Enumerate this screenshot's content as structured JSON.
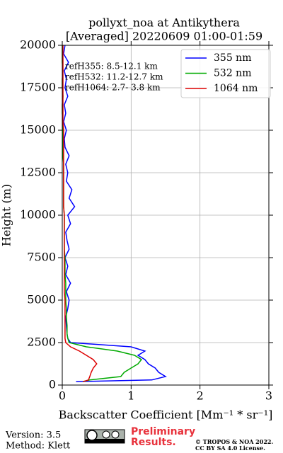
{
  "chart_data": {
    "type": "line",
    "orientation": "vertical-profile",
    "title": "pollyxt_noa at Antikythera",
    "subtitle": "[Averaged] 20220609 01:00-01:59",
    "x_label": "Backscatter Coefficient [Mm⁻¹ * sr⁻¹]",
    "y_label": "Height (m)",
    "y": [
      200,
      300,
      500,
      750,
      1000,
      1250,
      1500,
      1750,
      2000,
      2250,
      2500,
      2750,
      3000,
      3500,
      4000,
      4500,
      5000,
      5500,
      6000,
      6500,
      7000,
      7500,
      8000,
      8500,
      9000,
      9500,
      10000,
      10500,
      11000,
      11500,
      12000,
      12500,
      13000,
      13500,
      14000,
      14500,
      15000,
      15500,
      16000,
      16500,
      17000,
      17500,
      18000,
      18500,
      19000,
      19500,
      20000
    ],
    "series": [
      {
        "name": "355 nm",
        "color": "#0000ff",
        "values": [
          0.2,
          1.3,
          1.5,
          1.4,
          1.35,
          1.25,
          1.2,
          1.1,
          1.2,
          1.0,
          0.12,
          0.08,
          0.07,
          0.06,
          0.05,
          0.08,
          0.1,
          0.06,
          0.12,
          0.05,
          0.08,
          0.04,
          0.1,
          0.07,
          0.05,
          0.12,
          0.08,
          0.18,
          0.1,
          0.14,
          0.06,
          0.08,
          0.05,
          0.1,
          0.04,
          0.03,
          0.06,
          0.02,
          0.05,
          0.03,
          0.08,
          0.04,
          0.06,
          0.03,
          0.09,
          0.02,
          0.04
        ]
      },
      {
        "name": "532 nm",
        "color": "#00aa00",
        "values": [
          0.3,
          0.4,
          0.85,
          0.9,
          1.0,
          1.1,
          1.15,
          1.05,
          0.8,
          0.35,
          0.1,
          0.08,
          0.07,
          0.07,
          0.06,
          0.06,
          0.05,
          0.05,
          0.05,
          0.04,
          0.04,
          0.04,
          0.03,
          0.03,
          0.03,
          0.03,
          0.03,
          0.02,
          0.02,
          0.02,
          0.02,
          0.02,
          0.02,
          0.01,
          0.01,
          0.01,
          0.01,
          0.01,
          0.0,
          0.0,
          0.01,
          0.0,
          0.0,
          0.01,
          0.0,
          0.0,
          0.0
        ]
      },
      {
        "name": "1064 nm",
        "color": "#dd0000",
        "values": [
          0.3,
          0.38,
          0.4,
          0.42,
          0.45,
          0.5,
          0.45,
          0.35,
          0.25,
          0.12,
          0.05,
          0.04,
          0.04,
          0.04,
          0.04,
          0.04,
          0.04,
          0.03,
          0.03,
          0.03,
          0.03,
          0.03,
          0.03,
          0.03,
          0.03,
          0.03,
          0.03,
          0.02,
          0.02,
          0.02,
          0.02,
          0.02,
          0.02,
          0.02,
          0.02,
          0.02,
          0.02,
          0.01,
          0.01,
          0.01,
          0.01,
          0.01,
          0.01,
          0.01,
          0.01,
          0.01,
          0.01
        ]
      }
    ],
    "xlim": [
      0,
      3
    ],
    "xticks": [
      0,
      1,
      2,
      3
    ],
    "ylim": [
      0,
      20000
    ],
    "yticks": [
      0,
      2500,
      5000,
      7500,
      10000,
      12500,
      15000,
      17500,
      20000
    ],
    "grid": true,
    "legend": "upper right",
    "annotations": [
      "refH355:  8.5-12.1 km",
      "refH532: 11.2-12.7 km",
      "refH1064:  2.7- 3.8 km"
    ]
  },
  "footer": {
    "version": "Version: 3.5",
    "method": "Method: Klett",
    "note_line1": "Preliminary",
    "note_line2": "Results.",
    "copyright": "© TROPOS & NOA 2022.",
    "license": "CC BY SA 4.0 License."
  }
}
